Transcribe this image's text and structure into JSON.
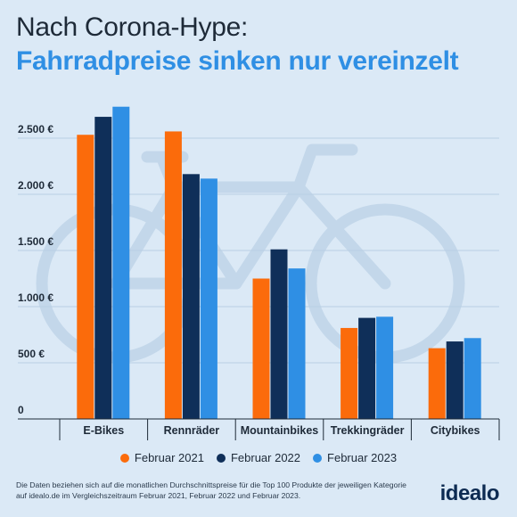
{
  "header": {
    "title": "Nach Corona-Hype:",
    "subtitle": "Fahrradpreise sinken nur vereinzelt"
  },
  "footnote": "Die Daten beziehen sich auf die monatlichen Durchschnittspreise für die Top 100 Produkte der jeweiligen Kategorie auf idealo.de im Vergleichszeitraum Februar 2021, Februar 2022 und Februar 2023.",
  "logo": "idealo",
  "colors": {
    "background": "#dbe9f6",
    "series_2021": "#fb6b0b",
    "series_2022": "#0f2f59",
    "series_2023": "#2f8fe4",
    "decor_bike": "#c3d7ea"
  },
  "chart_data": {
    "type": "bar",
    "categories": [
      "E-Bikes",
      "Rennräder",
      "Mountainbikes",
      "Trekkingräder",
      "Citybikes"
    ],
    "series": [
      {
        "name": "Februar 2021",
        "values": [
          2530,
          2560,
          1250,
          810,
          630
        ]
      },
      {
        "name": "Februar 2022",
        "values": [
          2690,
          2180,
          1510,
          900,
          690
        ]
      },
      {
        "name": "Februar 2023",
        "values": [
          2780,
          2140,
          1340,
          910,
          720
        ]
      }
    ],
    "yticks": [
      0,
      500,
      1000,
      1500,
      2000,
      2500
    ],
    "ytick_labels": [
      "0",
      "500 €",
      "1.000 €",
      "1.500 €",
      "2.000 €",
      "2.500 €"
    ],
    "ylim": [
      0,
      2900
    ],
    "grid": true,
    "legend_position": "bottom"
  }
}
